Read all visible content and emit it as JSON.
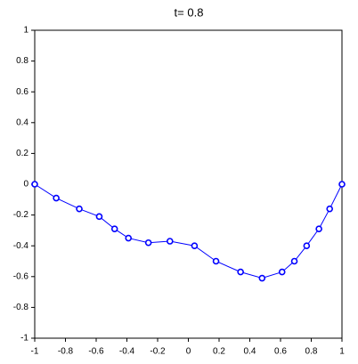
{
  "chart_data": {
    "type": "line",
    "title": "t= 0.8",
    "x": [
      -1,
      -0.86,
      -0.71,
      -0.58,
      -0.48,
      -0.39,
      -0.26,
      -0.12,
      0.04,
      0.18,
      0.34,
      0.48,
      0.61,
      0.69,
      0.77,
      0.85,
      0.92,
      1
    ],
    "series": [
      {
        "color": "#0000ff",
        "values": [
          0,
          -0.09,
          -0.16,
          -0.21,
          -0.29,
          -0.35,
          -0.38,
          -0.37,
          -0.4,
          -0.5,
          -0.57,
          -0.61,
          -0.57,
          -0.5,
          -0.4,
          -0.29,
          -0.16,
          0
        ]
      }
    ],
    "xlim": [
      -1,
      1
    ],
    "ylim": [
      -1,
      1
    ],
    "xticks": [
      -1,
      -0.8,
      -0.6,
      -0.4,
      -0.2,
      0,
      0.2,
      0.4,
      0.6,
      0.8,
      1
    ],
    "yticks": [
      -1,
      -0.8,
      -0.6,
      -0.4,
      -0.2,
      0,
      0.2,
      0.4,
      0.6,
      0.8,
      1
    ],
    "markers": true
  }
}
